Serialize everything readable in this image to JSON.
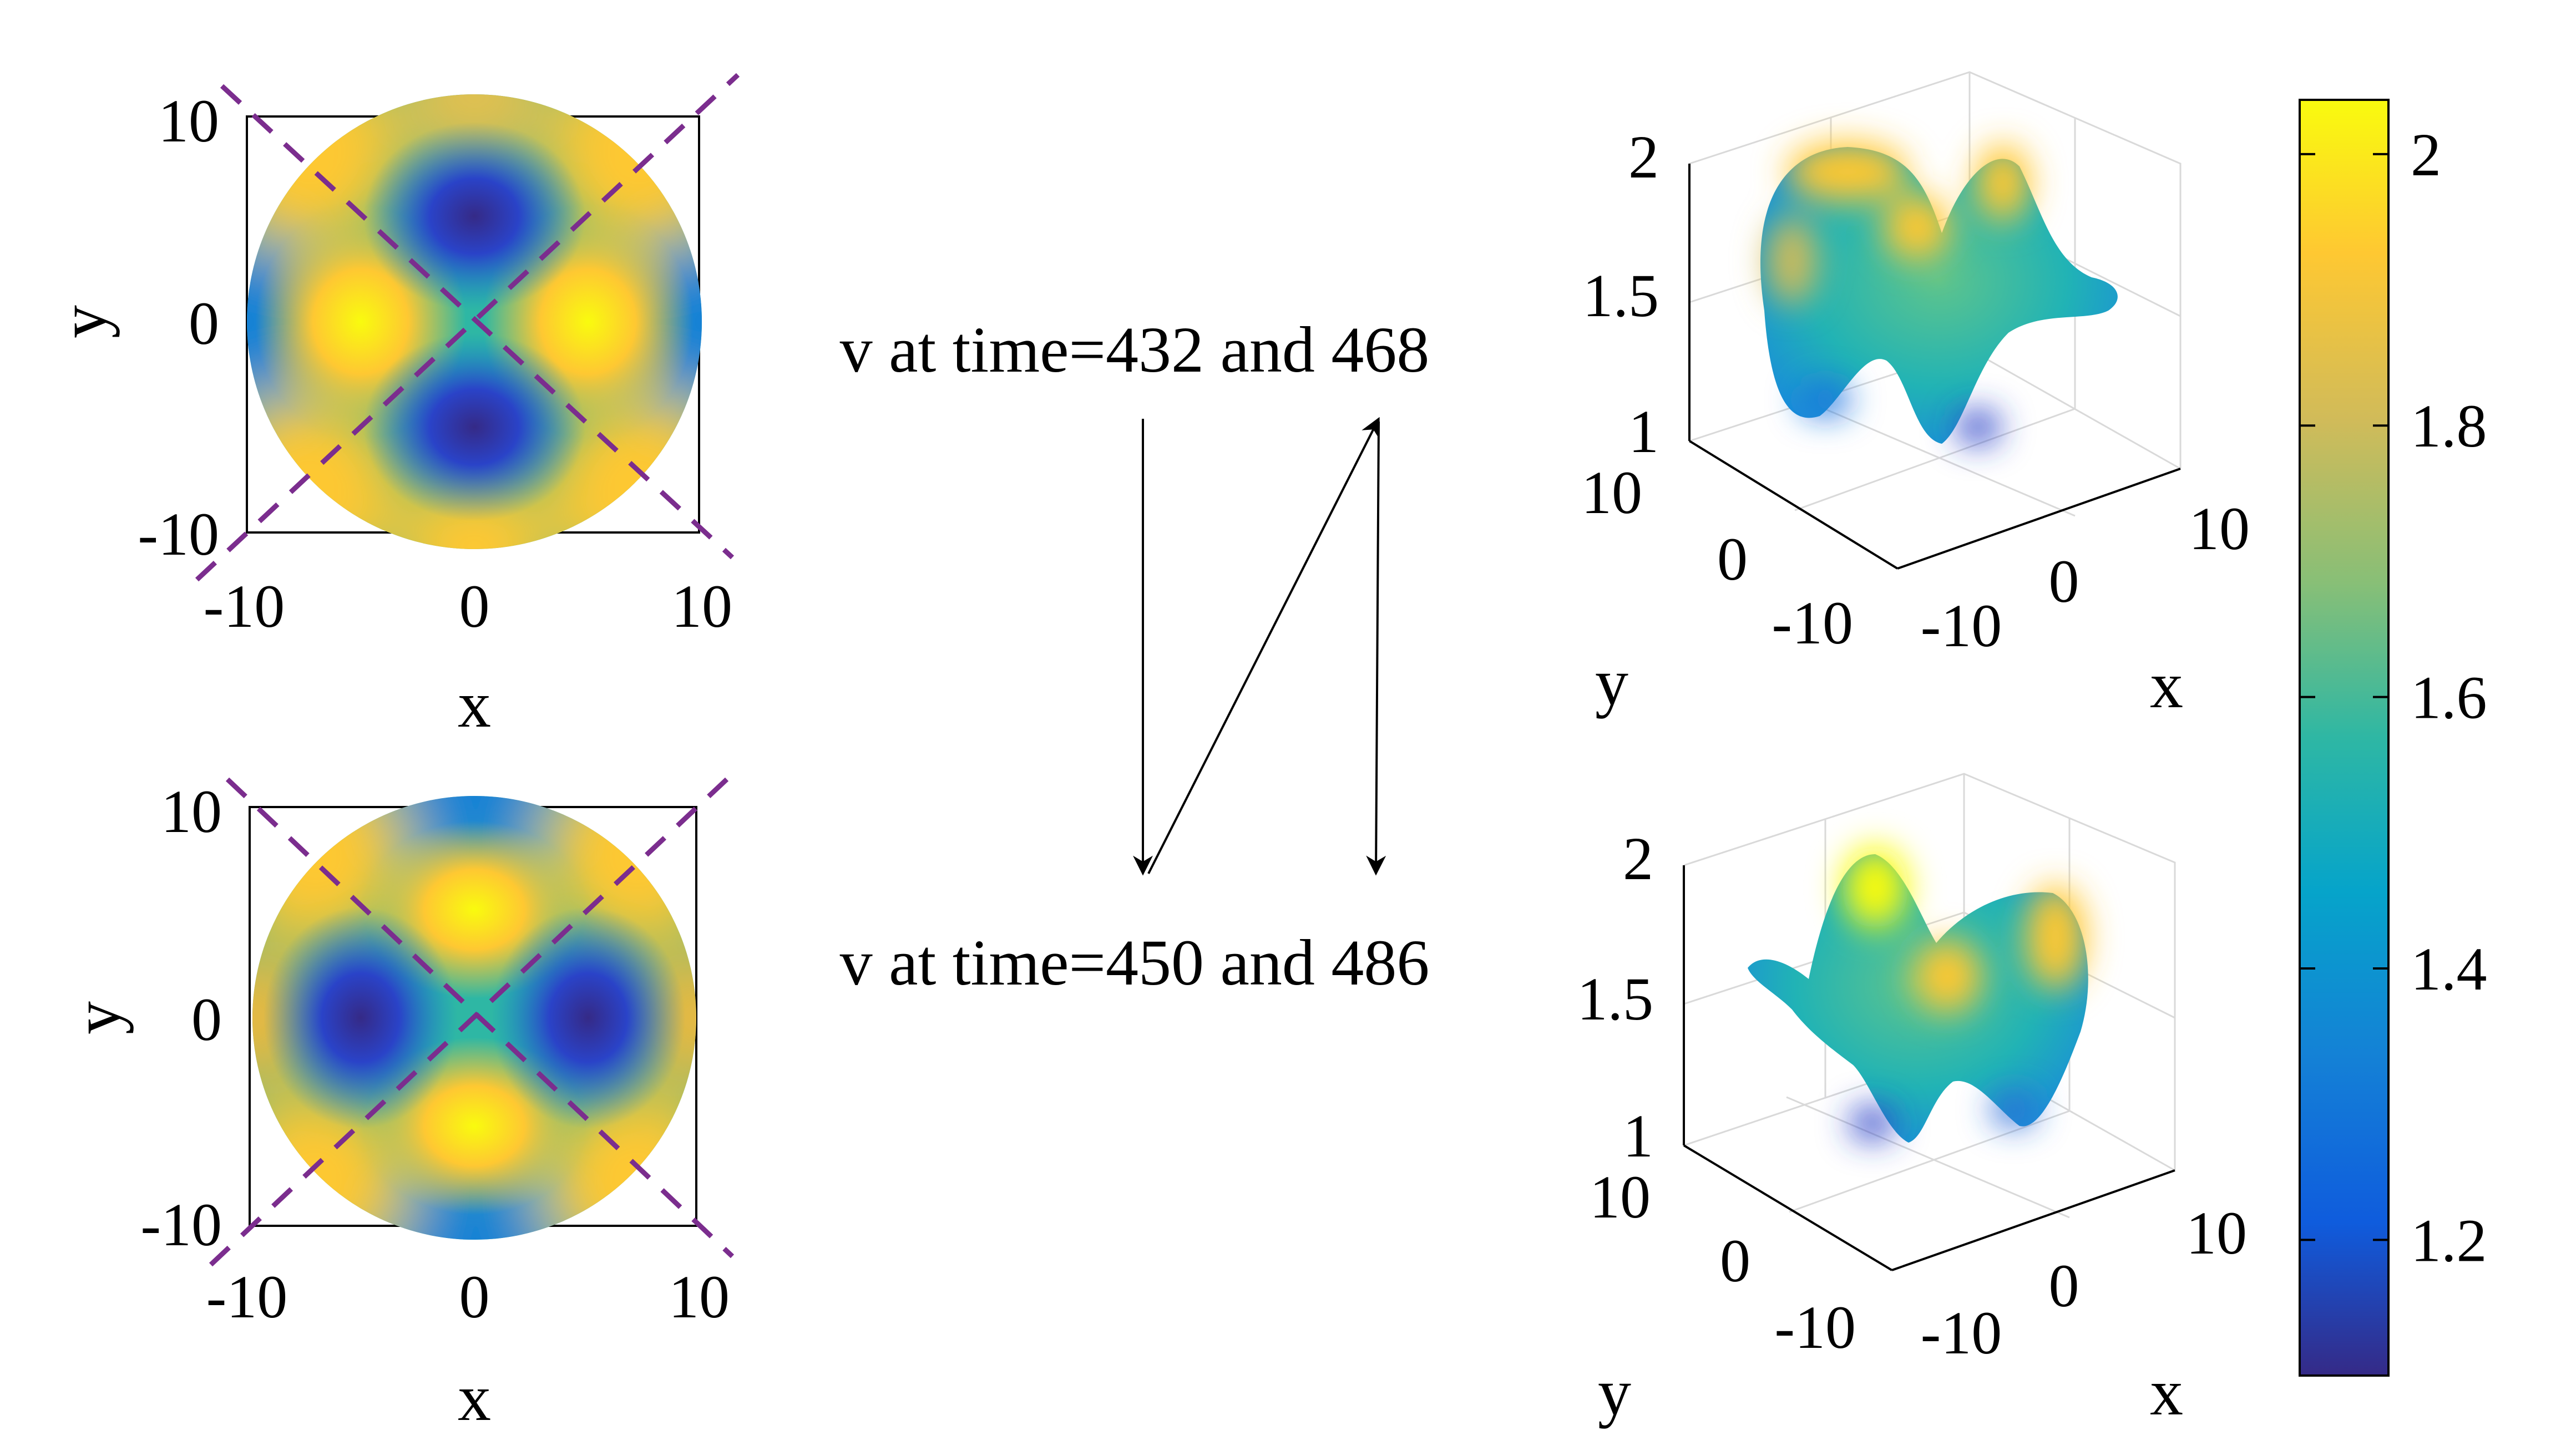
{
  "chart_data": [
    {
      "type": "heatmap",
      "xlabel": "x",
      "ylabel": "y",
      "xlim": [
        -10,
        10
      ],
      "ylim": [
        -10,
        10
      ],
      "xticks": [
        "-10",
        "0",
        "10"
      ],
      "yticks": [
        "10",
        "0",
        "-10"
      ],
      "domain": "disk of radius 10",
      "pattern": "high lobes on left and right, low lobes top and bottom",
      "dashed_diagonals": true
    },
    {
      "type": "heatmap",
      "xlabel": "x",
      "ylabel": "y",
      "xlim": [
        -10,
        10
      ],
      "ylim": [
        -10,
        10
      ],
      "xticks": [
        "-10",
        "0",
        "10"
      ],
      "yticks": [
        "10",
        "0",
        "-10"
      ],
      "domain": "disk of radius 10",
      "pattern": "high lobes top and bottom, low lobes on left and right",
      "dashed_diagonals": true
    },
    {
      "type": "surface",
      "xlabel": "x",
      "ylabel": "y",
      "zticks": [
        "2",
        "1.5",
        "1"
      ],
      "xticks": [
        "-10",
        "0",
        "10"
      ],
      "yticks": [
        "10",
        "0",
        "-10"
      ],
      "zlim": [
        1,
        2
      ]
    },
    {
      "type": "surface",
      "xlabel": "x",
      "ylabel": "y",
      "zticks": [
        "2",
        "1.5",
        "1"
      ],
      "xticks": [
        "-10",
        "0",
        "10"
      ],
      "yticks": [
        "10",
        "0",
        "-10"
      ],
      "zlim": [
        1,
        2
      ]
    }
  ],
  "colorbar": {
    "ticks": [
      "2",
      "1.8",
      "1.6",
      "1.4",
      "1.2"
    ],
    "values": [
      2,
      1.8,
      1.6,
      1.4,
      1.2
    ],
    "min": 1.1,
    "max": 2.04,
    "colormap": "parula"
  },
  "annotations": {
    "top": "v at time=432 and 468",
    "bottom": "v at time=450 and 486"
  },
  "colors": {
    "dashed_lines": "#7b2d8e",
    "arrows": "#000000",
    "grid": "#d9d9d9",
    "parula": [
      "#352a87",
      "#0f5cdd",
      "#1481d6",
      "#06a4ca",
      "#2eb7a4",
      "#87bf77",
      "#d1bb59",
      "#fec832",
      "#f9fb0e"
    ]
  }
}
